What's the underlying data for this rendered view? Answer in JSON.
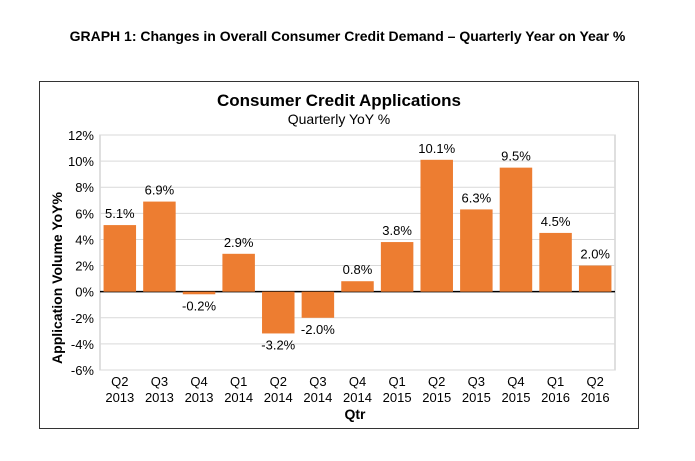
{
  "page_title": "GRAPH 1: Changes in Overall Consumer Credit Demand – Quarterly Year on Year %",
  "chart_data": {
    "type": "bar",
    "title": "Consumer Credit Applications",
    "subtitle": "Quarterly YoY %",
    "xlabel": "Qtr",
    "ylabel": "Application Volume YoY%",
    "ylim": [
      -6,
      12
    ],
    "yticks": [
      "12%",
      "10%",
      "8%",
      "6%",
      "4%",
      "2%",
      "0%",
      "-2%",
      "-4%",
      "-6%"
    ],
    "ytick_values": [
      12,
      10,
      8,
      6,
      4,
      2,
      0,
      -2,
      -4,
      -6
    ],
    "grid": true,
    "bar_color": "#ED7D31",
    "categories": [
      {
        "q": "Q2",
        "y": "2013"
      },
      {
        "q": "Q3",
        "y": "2013"
      },
      {
        "q": "Q4",
        "y": "2013"
      },
      {
        "q": "Q1",
        "y": "2014"
      },
      {
        "q": "Q2",
        "y": "2014"
      },
      {
        "q": "Q3",
        "y": "2014"
      },
      {
        "q": "Q4",
        "y": "2014"
      },
      {
        "q": "Q1",
        "y": "2015"
      },
      {
        "q": "Q2",
        "y": "2015"
      },
      {
        "q": "Q3",
        "y": "2015"
      },
      {
        "q": "Q4",
        "y": "2015"
      },
      {
        "q": "Q1",
        "y": "2016"
      },
      {
        "q": "Q2",
        "y": "2016"
      }
    ],
    "values": [
      5.1,
      6.9,
      -0.2,
      2.9,
      -3.2,
      -2.0,
      0.8,
      3.8,
      10.1,
      6.3,
      9.5,
      4.5,
      2.0
    ],
    "data_labels": [
      "5.1%",
      "6.9%",
      "-0.2%",
      "2.9%",
      "-3.2%",
      "-2.0%",
      "0.8%",
      "3.8%",
      "10.1%",
      "6.3%",
      "9.5%",
      "4.5%",
      "2.0%"
    ]
  }
}
